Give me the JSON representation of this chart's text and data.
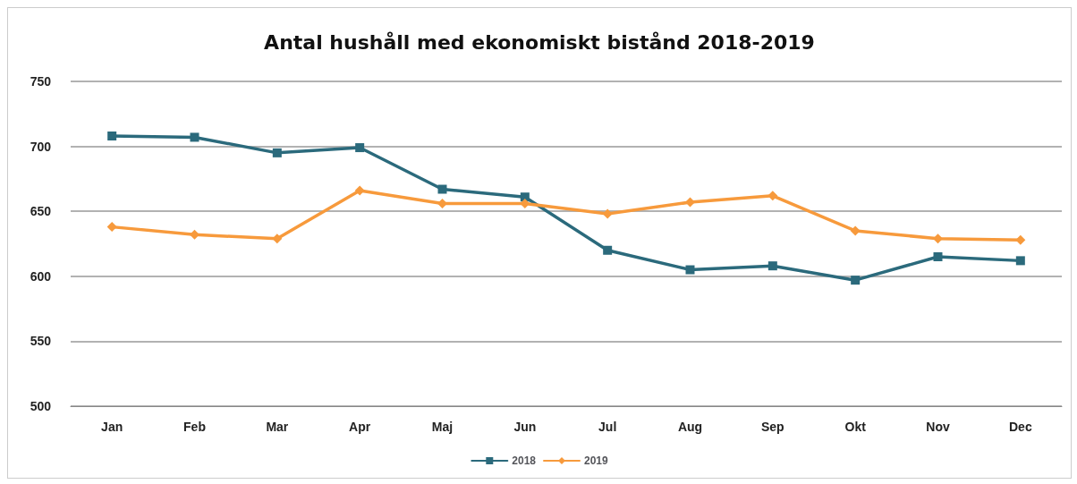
{
  "chart_data": {
    "type": "line",
    "title": "Antal hushåll med ekonomiskt bistånd 2018-2019",
    "categories": [
      "Jan",
      "Feb",
      "Mar",
      "Apr",
      "Maj",
      "Jun",
      "Jul",
      "Aug",
      "Sep",
      "Okt",
      "Nov",
      "Dec"
    ],
    "series": [
      {
        "name": "2018",
        "color": "#2b6a7c",
        "marker": "square",
        "values": [
          708,
          707,
          695,
          699,
          667,
          661,
          620,
          605,
          608,
          597,
          615,
          612
        ]
      },
      {
        "name": "2019",
        "color": "#f79a3c",
        "marker": "diamond",
        "values": [
          638,
          632,
          629,
          666,
          656,
          656,
          648,
          657,
          662,
          635,
          629,
          628
        ]
      }
    ],
    "ylim": [
      500,
      750
    ],
    "yticks": [
      500,
      550,
      600,
      650,
      700,
      750
    ],
    "grid": "y",
    "legend": "bottom",
    "line_style": "solid"
  }
}
